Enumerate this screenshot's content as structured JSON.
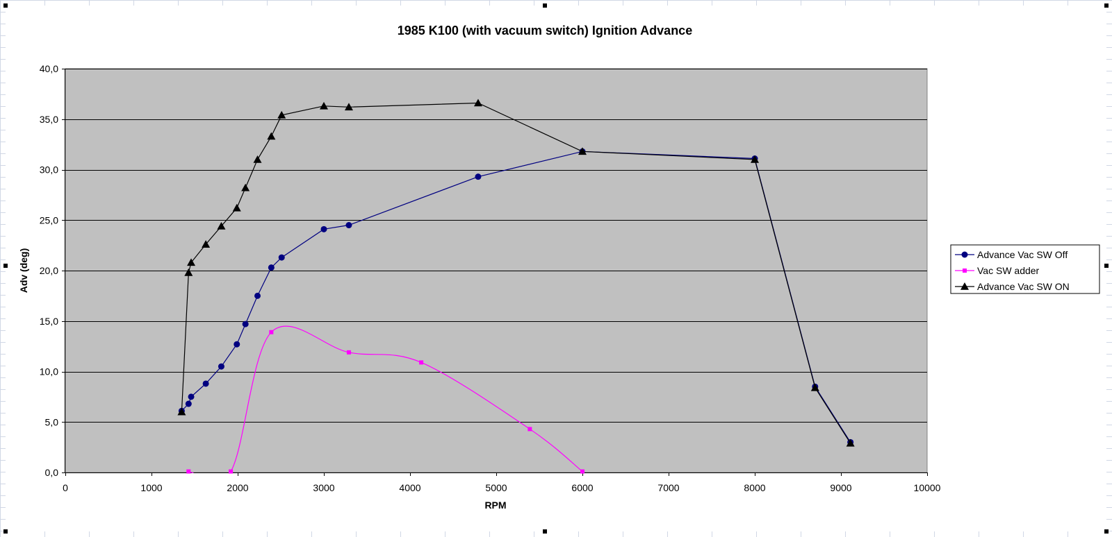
{
  "chart_data": {
    "type": "line",
    "title": "1985 K100 (with vacuum switch) Ignition Advance",
    "xlabel": "RPM",
    "ylabel": "Adv (deg)",
    "xlim": [
      0,
      10000
    ],
    "ylim": [
      0,
      40
    ],
    "x_ticks": [
      0,
      1000,
      2000,
      3000,
      4000,
      5000,
      6000,
      7000,
      8000,
      9000,
      10000
    ],
    "y_ticks": [
      0,
      5,
      10,
      15,
      20,
      25,
      30,
      35,
      40
    ],
    "x_tick_labels": [
      "0",
      "1000",
      "2000",
      "3000",
      "4000",
      "5000",
      "6000",
      "7000",
      "8000",
      "9000",
      "10000"
    ],
    "y_tick_labels": [
      "0,0",
      "5,0",
      "10,0",
      "15,0",
      "20,0",
      "25,0",
      "30,0",
      "35,0",
      "40,0"
    ],
    "grid": "horizontal major gridlines",
    "plot_background": "#C0C0C0",
    "legend_position": "right",
    "series": [
      {
        "name": "Advance Vac SW Off",
        "color": "#000080",
        "marker": "circle",
        "smooth": false,
        "x": [
          1350,
          1430,
          1460,
          1630,
          1810,
          1990,
          2090,
          2230,
          2390,
          2510,
          3000,
          3290,
          4790,
          6000,
          8000,
          8700,
          9110
        ],
        "y": [
          6.1,
          6.8,
          7.5,
          8.8,
          10.5,
          12.7,
          14.7,
          17.5,
          20.3,
          21.3,
          24.1,
          24.5,
          29.3,
          31.8,
          31.1,
          8.5,
          3.0
        ]
      },
      {
        "name": "Vac SW adder",
        "color": "#FF00FF",
        "marker": "square",
        "smooth": true,
        "x": [
          1430,
          1920,
          2390,
          3290,
          4130,
          5390,
          6000
        ],
        "y": [
          0.1,
          0.1,
          13.9,
          11.9,
          10.9,
          4.3,
          0.1
        ]
      },
      {
        "name": "Advance Vac SW ON",
        "color": "#000000",
        "marker": "triangle",
        "smooth": false,
        "x": [
          1350,
          1430,
          1460,
          1630,
          1810,
          1990,
          2090,
          2230,
          2390,
          2510,
          3000,
          3290,
          4790,
          6000,
          8000,
          8700,
          9110
        ],
        "y": [
          6.0,
          19.8,
          20.8,
          22.6,
          24.4,
          26.2,
          28.2,
          31.0,
          33.3,
          35.4,
          36.3,
          36.2,
          36.6,
          31.8,
          31.0,
          8.4,
          2.9
        ]
      }
    ]
  }
}
